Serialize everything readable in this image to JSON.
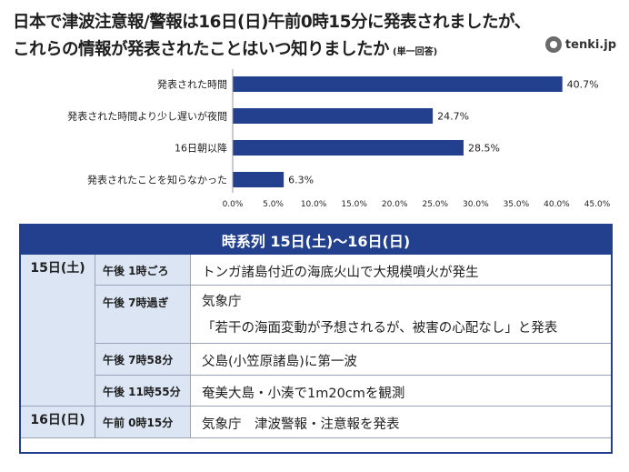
{
  "title": {
    "line1": "日本で津波注意報/警報は16日(日)午前0時15分に発表されましたが、",
    "line2": "これらの情報が発表されたことはいつ知りましたか",
    "note": "(単一回答)"
  },
  "logo": {
    "text": "tenki.jp"
  },
  "chart_data": {
    "type": "bar",
    "orientation": "horizontal",
    "categories": [
      "発表された時間",
      "発表された時間より少し遅いが夜間",
      "16日朝以降",
      "発表されたことを知らなかった"
    ],
    "values": [
      40.7,
      24.7,
      28.5,
      6.3
    ],
    "value_labels": [
      "40.7%",
      "24.7%",
      "28.5%",
      "6.3%"
    ],
    "xlim": [
      0,
      45
    ],
    "xticks": [
      "0.0%",
      "5.0%",
      "10.0%",
      "15.0%",
      "20.0%",
      "25.0%",
      "30.0%",
      "35.0%",
      "40.0%",
      "45.0%"
    ],
    "bar_color": "#23408f",
    "grid": false
  },
  "timeline": {
    "header": "時系列 15日(土)〜16日(日)",
    "days": [
      {
        "label": "15日(土)",
        "rows": [
          {
            "time": "午後 1時ごろ",
            "lines": [
              "トンガ諸島付近の海底火山で大規模噴火が発生"
            ]
          },
          {
            "time": "午後 7時過ぎ",
            "lines": [
              "気象庁",
              "「若干の海面変動が予想されるが、被害の心配なし」と発表"
            ]
          },
          {
            "time": "午後 7時58分",
            "lines": [
              "父島(小笠原諸島)に第一波"
            ]
          },
          {
            "time": "午後 11時55分",
            "lines": [
              "奄美大島・小湊で1m20cmを観測"
            ]
          }
        ]
      },
      {
        "label": "16日(日)",
        "rows": [
          {
            "time": "午前 0時15分",
            "lines": [
              "気象庁　津波警報・注意報を発表"
            ]
          }
        ]
      }
    ],
    "colors": {
      "header_bg": "#23408f",
      "cell_bg": "#dbe5f3"
    }
  }
}
